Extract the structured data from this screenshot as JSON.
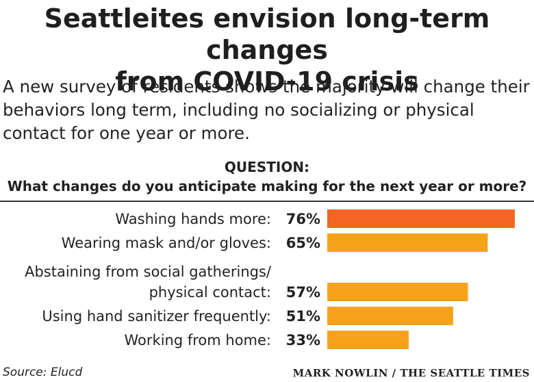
{
  "header": {
    "title_line1": "Seattleites envision long-term changes",
    "title_line2": "from COVID-19 crisis",
    "subtitle_line1": "A new survey of residents shows the majority will change their",
    "subtitle_line2": "behaviors long term, including no socializing or physical",
    "subtitle_line3": "contact for one year or more."
  },
  "question": {
    "label": "QUESTION:",
    "text": "What changes do you anticipate making for the next year or more?"
  },
  "colors": {
    "highlight": "#f26522",
    "bar": "#f7a21b"
  },
  "chart_data": {
    "type": "bar",
    "orientation": "horizontal",
    "categories": [
      [
        "Washing hands more:"
      ],
      [
        "Wearing mask and/or gloves:"
      ],
      [
        "Abstaining from social gatherings/",
        "physical contact:"
      ],
      [
        "Using hand sanitizer frequently:"
      ],
      [
        "Working from home:"
      ]
    ],
    "values": [
      76,
      65,
      57,
      51,
      33
    ],
    "value_labels": [
      "76%",
      "65%",
      "57%",
      "51%",
      "33%"
    ],
    "highlight_index": 0,
    "xlim": [
      0,
      76
    ],
    "grid": false
  },
  "footer": {
    "source": "Source: Elucd",
    "credit": "MARK NOWLIN / THE SEATTLE TIMES"
  }
}
